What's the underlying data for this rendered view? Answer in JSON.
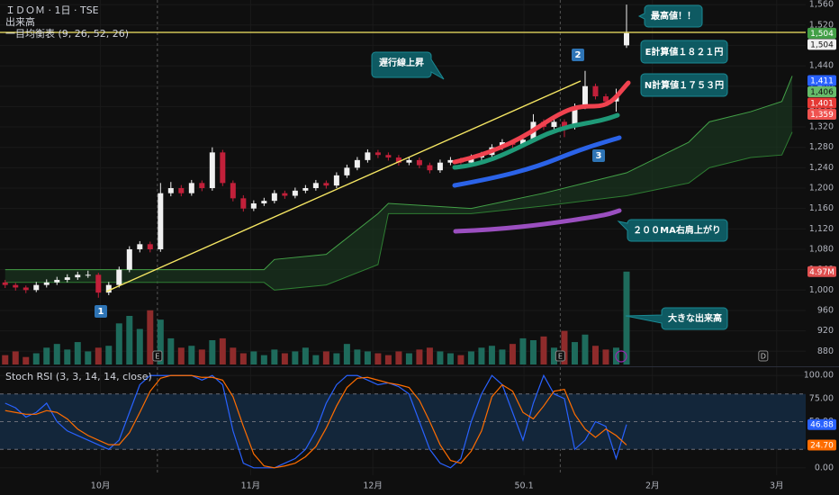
{
  "chart_data": [
    {
      "type": "candlestick",
      "title": "ＩＤＯＭ · 1日 · TSE",
      "up_color": "#f0f0f0",
      "down_color": "#c2203a",
      "ohlc": [
        [
          1015,
          1020,
          1004,
          1010
        ],
        [
          1010,
          1014,
          999,
          1005
        ],
        [
          1005,
          1009,
          994,
          1000
        ],
        [
          1000,
          1016,
          996,
          1010
        ],
        [
          1010,
          1021,
          1005,
          1015
        ],
        [
          1015,
          1026,
          1010,
          1020
        ],
        [
          1020,
          1031,
          1015,
          1025
        ],
        [
          1025,
          1036,
          1020,
          1030
        ],
        [
          1030,
          1038,
          1024,
          1030
        ],
        [
          1030,
          1034,
          985,
          995
        ],
        [
          995,
          1016,
          990,
          1010
        ],
        [
          1010,
          1046,
          1005,
          1040
        ],
        [
          1040,
          1086,
          1035,
          1080
        ],
        [
          1080,
          1096,
          1074,
          1090
        ],
        [
          1090,
          1095,
          1074,
          1080
        ],
        [
          1080,
          1210,
          1075,
          1190
        ],
        [
          1190,
          1212,
          1184,
          1200
        ],
        [
          1200,
          1206,
          1184,
          1190
        ],
        [
          1190,
          1216,
          1185,
          1210
        ],
        [
          1210,
          1215,
          1194,
          1200
        ],
        [
          1200,
          1280,
          1195,
          1270
        ],
        [
          1270,
          1275,
          1204,
          1210
        ],
        [
          1210,
          1215,
          1174,
          1180
        ],
        [
          1180,
          1186,
          1154,
          1160
        ],
        [
          1160,
          1176,
          1155,
          1170
        ],
        [
          1170,
          1181,
          1165,
          1175
        ],
        [
          1175,
          1196,
          1170,
          1190
        ],
        [
          1190,
          1195,
          1179,
          1185
        ],
        [
          1185,
          1201,
          1180,
          1195
        ],
        [
          1195,
          1206,
          1190,
          1200
        ],
        [
          1200,
          1216,
          1195,
          1210
        ],
        [
          1210,
          1215,
          1199,
          1205
        ],
        [
          1205,
          1231,
          1200,
          1225
        ],
        [
          1225,
          1246,
          1220,
          1240
        ],
        [
          1240,
          1261,
          1235,
          1255
        ],
        [
          1255,
          1276,
          1250,
          1270
        ],
        [
          1270,
          1275,
          1259,
          1265
        ],
        [
          1265,
          1270,
          1254,
          1260
        ],
        [
          1260,
          1265,
          1244,
          1250
        ],
        [
          1250,
          1261,
          1245,
          1255
        ],
        [
          1255,
          1260,
          1239,
          1245
        ],
        [
          1245,
          1250,
          1229,
          1235
        ],
        [
          1235,
          1256,
          1230,
          1250
        ],
        [
          1250,
          1261,
          1245,
          1255
        ],
        [
          1255,
          1260,
          1244,
          1250
        ],
        [
          1250,
          1266,
          1245,
          1260
        ],
        [
          1260,
          1271,
          1255,
          1265
        ],
        [
          1265,
          1286,
          1260,
          1280
        ],
        [
          1280,
          1296,
          1275,
          1290
        ],
        [
          1290,
          1295,
          1279,
          1285
        ],
        [
          1285,
          1301,
          1280,
          1295
        ],
        [
          1295,
          1345,
          1290,
          1330
        ],
        [
          1330,
          1335,
          1314,
          1320
        ],
        [
          1320,
          1336,
          1315,
          1330
        ],
        [
          1330,
          1335,
          1300,
          1320
        ],
        [
          1320,
          1366,
          1315,
          1360
        ],
        [
          1360,
          1430,
          1355,
          1400
        ],
        [
          1400,
          1405,
          1374,
          1380
        ],
        [
          1380,
          1385,
          1364,
          1370
        ],
        [
          1370,
          1395,
          1350,
          1380
        ],
        [
          1480,
          1560,
          1475,
          1504
        ]
      ],
      "cloud": {
        "name": "一目均衡表 (9, 26, 52, 26)",
        "color_a": "#43a047",
        "color_b": "#2e7d32",
        "fill": "#1b3a22",
        "x": [
          0,
          25,
          26,
          31,
          36,
          37,
          45,
          52,
          60,
          66,
          68,
          72,
          75,
          76
        ],
        "span_a": [
          1040,
          1040,
          1060,
          1070,
          1150,
          1170,
          1160,
          1190,
          1230,
          1290,
          1330,
          1350,
          1370,
          1420
        ],
        "span_b": [
          1015,
          1015,
          1000,
          1010,
          1050,
          1150,
          1150,
          1165,
          1185,
          1210,
          1240,
          1260,
          1265,
          1310
        ]
      },
      "price_labels": [
        {
          "value": 1504,
          "label": "1,504",
          "color": "#43a047"
        },
        {
          "value": 1504,
          "label": "1,504",
          "color": "#f0f0f0"
        },
        {
          "value": 1411,
          "label": "1,411",
          "color": "#2962ff"
        },
        {
          "value": 1406,
          "label": "1,406",
          "color": "#66bb6a"
        },
        {
          "value": 1401,
          "label": "1,401",
          "color": "#e53935"
        },
        {
          "value": 1359,
          "label": "1,359",
          "color": "#ef5350"
        }
      ],
      "events": [
        {
          "x": 14.7,
          "label": "E",
          "line": true
        },
        {
          "x": 53.6,
          "label": "E",
          "line": true
        },
        {
          "x": 73.2,
          "label": "D",
          "line": false
        }
      ],
      "xlim": [
        -0.5,
        77.3
      ],
      "xticks": [
        {
          "value": 9.2,
          "label": "10月"
        },
        {
          "value": 23.7,
          "label": "11月"
        },
        {
          "value": 35.5,
          "label": "12月"
        },
        50.1,
        {
          "value": 62.5,
          "label": "2月"
        },
        {
          "value": 74.5,
          "label": "3月"
        }
      ],
      "ylim": [
        854,
        1569
      ],
      "yticks": [
        880,
        920,
        960,
        {
          "value": 1000,
          "label": "1,000"
        },
        {
          "value": 1040,
          "label": "1,040"
        },
        {
          "value": 1080,
          "label": "1,080"
        },
        {
          "value": 1120,
          "label": "1,120"
        },
        {
          "value": 1160,
          "label": "1,160"
        },
        {
          "value": 1200,
          "label": "1,200"
        },
        {
          "value": 1240,
          "label": "1,240"
        },
        {
          "value": 1280,
          "label": "1,280"
        },
        {
          "value": 1320,
          "label": "1,320"
        },
        {
          "value": 1360,
          "label": "1,360"
        },
        {
          "value": 1400,
          "label": "1,400"
        },
        {
          "value": 1440,
          "label": "1,440"
        },
        {
          "value": 1480,
          "label": "1,480"
        },
        {
          "value": 1520,
          "label": "1,520"
        },
        {
          "value": 1560,
          "label": "1,560"
        }
      ],
      "grid": true
    },
    {
      "type": "bar",
      "title": "出来高",
      "up_color": "#1e6b5c",
      "down_color": "#8e2b2b",
      "label_color": "#e05050",
      "values": [
        500000,
        700000,
        400000,
        600000,
        900000,
        1100000,
        800000,
        1200000,
        700000,
        900000,
        1000000,
        2200000,
        2600000,
        1900000,
        2900000,
        2400000,
        1400000,
        900000,
        1000000,
        800000,
        1300000,
        1400000,
        900000,
        600000,
        700000,
        500000,
        800000,
        600000,
        700000,
        900000,
        500000,
        700000,
        600000,
        1100000,
        800000,
        700000,
        600000,
        500000,
        700000,
        600000,
        800000,
        900000,
        700000,
        600000,
        500000,
        700000,
        900000,
        1000000,
        800000,
        1100000,
        1400000,
        1300000,
        1500000,
        900000,
        1800000,
        1200000,
        1600000,
        1000000,
        800000,
        900000,
        4970000
      ],
      "value_labels": [
        null,
        null,
        null,
        null,
        null,
        null,
        null,
        null,
        null,
        null,
        null,
        null,
        null,
        null,
        null,
        null,
        null,
        null,
        null,
        null,
        null,
        null,
        null,
        null,
        null,
        null,
        null,
        null,
        null,
        null,
        null,
        null,
        null,
        null,
        null,
        null,
        null,
        null,
        null,
        null,
        null,
        null,
        null,
        null,
        null,
        null,
        null,
        null,
        null,
        null,
        null,
        null,
        null,
        null,
        null,
        null,
        null,
        null,
        null,
        null,
        "4.97M"
      ],
      "ylim": [
        0,
        5200000
      ]
    },
    {
      "type": "line",
      "title": "Stoch RSI (3, 3, 14, 14, close)",
      "series": [
        {
          "color": "#2962ff",
          "values": [
            70,
            65,
            55,
            60,
            70,
            50,
            40,
            35,
            30,
            25,
            20,
            30,
            60,
            90,
            100,
            100,
            100,
            100,
            100,
            95,
            100,
            90,
            40,
            5,
            0,
            0,
            0,
            5,
            10,
            20,
            40,
            70,
            90,
            100,
            100,
            95,
            90,
            92,
            88,
            80,
            50,
            20,
            5,
            0,
            10,
            50,
            80,
            100,
            90,
            60,
            30,
            70,
            100,
            80,
            75,
            20,
            30,
            50,
            45,
            10,
            46.88
          ]
        },
        {
          "color": "#ff6d00",
          "values": [
            62,
            60,
            58,
            58,
            62,
            60,
            53,
            42,
            35,
            30,
            25,
            25,
            38,
            60,
            83,
            97,
            100,
            100,
            100,
            98,
            98,
            95,
            77,
            45,
            15,
            2,
            0,
            2,
            5,
            12,
            23,
            43,
            67,
            87,
            97,
            98,
            95,
            92,
            90,
            87,
            73,
            50,
            25,
            8,
            5,
            18,
            40,
            77,
            90,
            83,
            60,
            53,
            67,
            83,
            85,
            58,
            42,
            33,
            42,
            35,
            24.7
          ],
          "value_labels": [
            null,
            null,
            null,
            null,
            null,
            null,
            null,
            null,
            null,
            null,
            null,
            null,
            null,
            null,
            null,
            null,
            null,
            null,
            null,
            null,
            null,
            null,
            null,
            null,
            null,
            null,
            null,
            null,
            null,
            null,
            null,
            null,
            null,
            null,
            null,
            null,
            null,
            null,
            null,
            null,
            null,
            null,
            null,
            null,
            null,
            null,
            null,
            null,
            null,
            null,
            null,
            null,
            null,
            null,
            null,
            null,
            null,
            null,
            null,
            null,
            "24.70"
          ]
        }
      ],
      "band_lines": [
        20,
        50,
        80
      ],
      "band_fill": "#13263a",
      "ylim": [
        -8,
        109
      ],
      "yticks": [
        {
          "value": 0,
          "label": "0.00"
        },
        {
          "value": 25,
          "label": "25.00"
        },
        {
          "value": 50,
          "label": "50.00"
        },
        {
          "value": 75,
          "label": "75.00"
        },
        {
          "value": 100,
          "label": "100.00"
        }
      ],
      "grid": true
    }
  ],
  "annotations": {
    "peak": "最高値！！",
    "e_target": "E計算値１８２１円",
    "n_target": "N計算値１７５３円",
    "lagging": "遅行線上昇",
    "ma200": "２００MA右肩上がり",
    "volume": "大きな出来高",
    "points": [
      "1",
      "2",
      "3"
    ]
  }
}
